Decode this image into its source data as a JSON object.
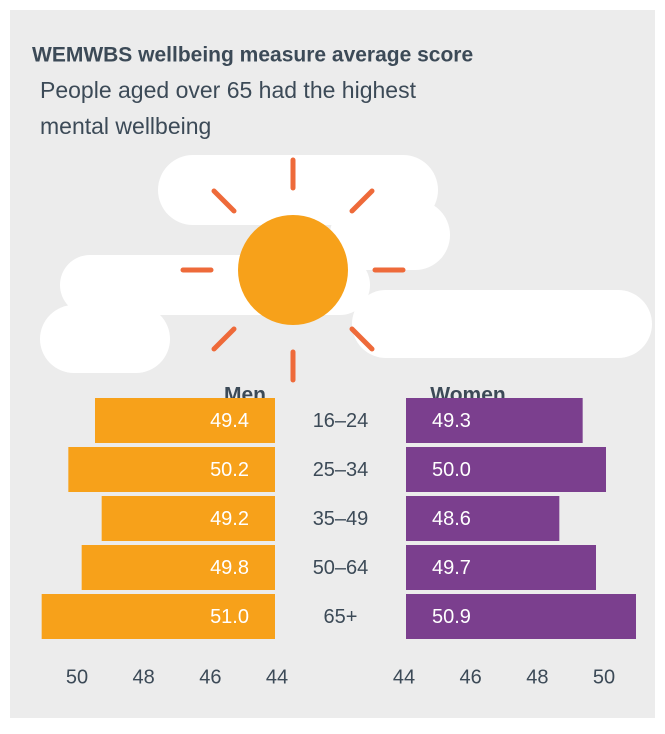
{
  "chart_data": {
    "type": "butterfly",
    "title": "WEMWBS wellbeing measure average score",
    "subtitle": [
      "People aged over 65 had the highest",
      "mental wellbeing"
    ],
    "categories": [
      "16–24",
      "25–34",
      "35–49",
      "50–64",
      "65+"
    ],
    "series": [
      {
        "name": "Men",
        "color": "#f7a11a",
        "values": [
          49.4,
          50.2,
          49.2,
          49.8,
          51.0
        ],
        "value_labels": [
          "49.4",
          "50.2",
          "49.2",
          "49.8",
          "51.0"
        ]
      },
      {
        "name": "Women",
        "color": "#7b3f8e",
        "values": [
          49.3,
          50.0,
          48.6,
          49.7,
          50.9
        ],
        "value_labels": [
          "49.3",
          "50.0",
          "48.6",
          "49.7",
          "50.9"
        ]
      }
    ],
    "xlim": [
      44,
      51.2
    ],
    "xticks": [
      44,
      46,
      48,
      50
    ]
  }
}
